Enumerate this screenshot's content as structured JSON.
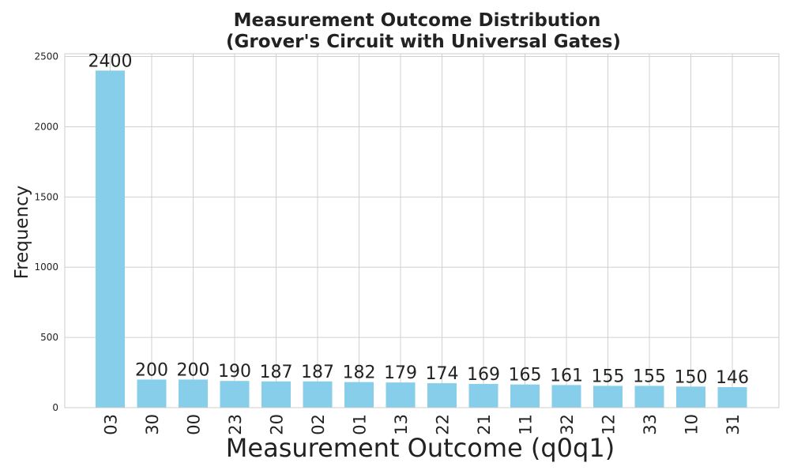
{
  "chart_data": {
    "type": "bar",
    "title": "Measurement Outcome Distribution\n(Grover's Circuit with Universal Gates)",
    "title_lines": [
      "Measurement Outcome Distribution",
      "(Grover's Circuit with Universal Gates)"
    ],
    "xlabel": "Measurement Outcome (q0q1)",
    "ylabel": "Frequency",
    "categories": [
      "03",
      "30",
      "00",
      "23",
      "20",
      "02",
      "01",
      "13",
      "22",
      "21",
      "11",
      "32",
      "12",
      "33",
      "10",
      "31"
    ],
    "values": [
      2400,
      200,
      200,
      190,
      187,
      187,
      182,
      179,
      174,
      169,
      165,
      161,
      155,
      155,
      150,
      146
    ],
    "data_labels": [
      "2400",
      "200",
      "200",
      "190",
      "187",
      "187",
      "182",
      "179",
      "174",
      "169",
      "165",
      "161",
      "155",
      "155",
      "150",
      "146"
    ],
    "ylim": [
      0,
      2520
    ],
    "yticks": [
      0,
      500,
      1000,
      1500,
      2000,
      2500
    ],
    "ytick_labels": [
      "0",
      "500",
      "1000",
      "1500",
      "2000",
      "2500"
    ],
    "grid": true,
    "bar_color": "#87ceeb",
    "grid_color": "#d0d0d0",
    "frame_color": "#cccccc",
    "text_color": "#222222"
  }
}
